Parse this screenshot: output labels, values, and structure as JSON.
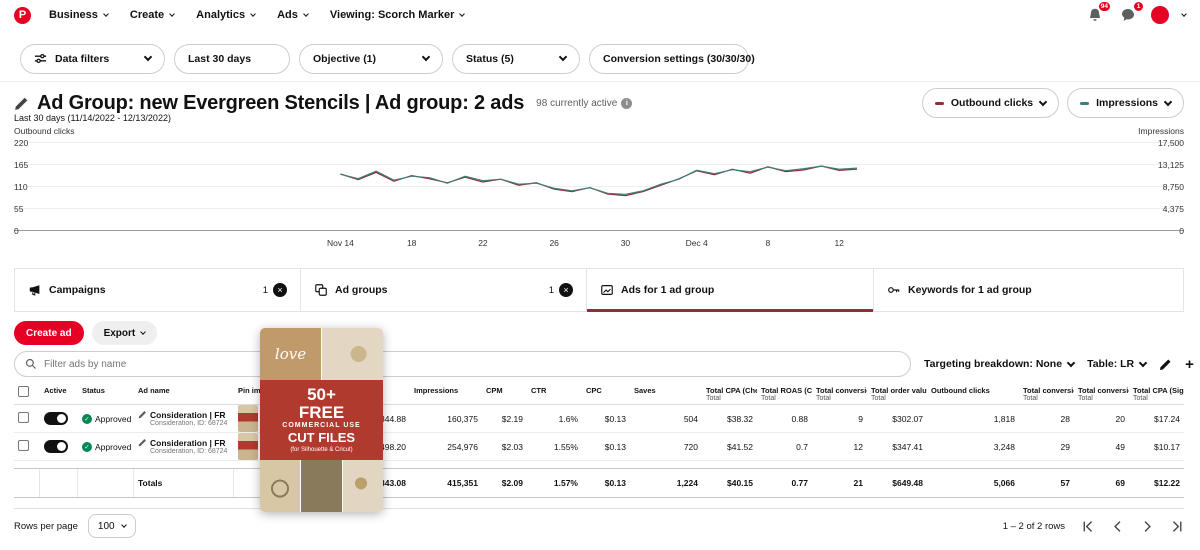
{
  "colors": {
    "pinterest_red": "#e60023",
    "outbound_series": "#8c2f39",
    "impressions_series": "#3f7e78",
    "approved_green": "#008753",
    "active_tab_underline": "#8c2f39"
  },
  "icons": {
    "logo": "P",
    "close": "×",
    "check": "✓",
    "plus": "+",
    "info": "i"
  },
  "nav": {
    "items": [
      {
        "label": "Business"
      },
      {
        "label": "Create"
      },
      {
        "label": "Analytics"
      },
      {
        "label": "Ads"
      },
      {
        "label": "Viewing: Scorch Marker"
      }
    ],
    "notifications_badge": "94",
    "messages_badge": "1"
  },
  "filters": {
    "items": [
      {
        "label": "Data filters"
      },
      {
        "label": "Last 30 days"
      },
      {
        "label": "Objective (1)"
      },
      {
        "label": "Status (5)"
      },
      {
        "label": "Conversion settings (30/30/30)"
      }
    ]
  },
  "header": {
    "title": "Ad Group: new Evergreen Stencils | Ad group: 2 ads",
    "active_note": "98 currently active",
    "date_caption": "Last 30 days (11/14/2022 - 12/13/2022)",
    "metric_selectors": [
      {
        "label": "Outbound clicks"
      },
      {
        "label": "Impressions"
      }
    ]
  },
  "chart_data": {
    "type": "line",
    "x_tick_labels": [
      "Nov 14",
      "18",
      "22",
      "26",
      "30",
      "Dec 4",
      "8",
      "12"
    ],
    "x_tick_indices": [
      0,
      4,
      8,
      12,
      16,
      20,
      24,
      28
    ],
    "left_axis": {
      "label": "Outbound clicks",
      "ticks": [
        "220",
        "165",
        "110",
        "55",
        "0"
      ],
      "max": 220
    },
    "right_axis": {
      "label": "Impressions",
      "ticks": [
        "17,500",
        "13,125",
        "8,750",
        "4,375",
        "0"
      ],
      "max": 17500
    },
    "series": [
      {
        "name": "Outbound clicks",
        "axis": "left",
        "color": "#8c2f39",
        "values": [
          140,
          126,
          144,
          122,
          136,
          128,
          118,
          132,
          120,
          127,
          112,
          118,
          102,
          96,
          106,
          90,
          86,
          96,
          112,
          128,
          148,
          138,
          152,
          142,
          158,
          146,
          150,
          160,
          149,
          152
        ]
      },
      {
        "name": "Impressions",
        "axis": "right",
        "color": "#3f7e78",
        "values": [
          11100,
          10200,
          11700,
          9900,
          10700,
          10400,
          9300,
          10700,
          9800,
          10100,
          9100,
          9300,
          8300,
          7800,
          8400,
          7300,
          7100,
          7800,
          9100,
          10100,
          11900,
          11200,
          12000,
          11600,
          12500,
          11800,
          12200,
          12700,
          12100,
          12300
        ]
      }
    ]
  },
  "tabs": [
    {
      "label": "Campaigns",
      "count": "1"
    },
    {
      "label": "Ad groups",
      "count": "1"
    },
    {
      "label": "Ads for 1 ad group",
      "active": true
    },
    {
      "label": "Keywords for 1 ad group"
    }
  ],
  "toolbar": {
    "create_ad": "Create ad",
    "export": "Export",
    "search_placeholder": "Filter ads by name",
    "targeting_breakdown": "Targeting breakdown: None",
    "table_view": "Table: LR"
  },
  "table": {
    "columns": [
      {
        "label": ""
      },
      {
        "label": "Active"
      },
      {
        "label": "Status"
      },
      {
        "label": "Ad name"
      },
      {
        "label": "Pin ima"
      },
      {
        "label": ""
      },
      {
        "label": "Impressions"
      },
      {
        "label": "CPM"
      },
      {
        "label": "CTR"
      },
      {
        "label": "CPC"
      },
      {
        "label": "Saves"
      },
      {
        "label": "Total CPA (Che",
        "sub": "Total"
      },
      {
        "label": "Total ROAS (Ch",
        "sub": "Total"
      },
      {
        "label": "Total conversio",
        "sub": "Total"
      },
      {
        "label": "Total order value (",
        "sub": "Total"
      },
      {
        "label": "Outbound clicks"
      },
      {
        "label": "Total conversio",
        "sub": "Total"
      },
      {
        "label": "Total conversio",
        "sub": "Total"
      },
      {
        "label": "Total CPA (Sig",
        "sub": "Total"
      }
    ],
    "rows": [
      {
        "active": true,
        "status": "Approved",
        "name": "Consideration | FR",
        "meta": "Consideration, ID: 68724",
        "values": [
          "$344.88",
          "160,375",
          "$2.19",
          "1.6%",
          "$0.13",
          "504",
          "$38.32",
          "0.88",
          "9",
          "$302.07",
          "1,818",
          "28",
          "20",
          "$17.24"
        ]
      },
      {
        "active": true,
        "status": "Approved",
        "name": "Consideration | FR",
        "meta": "Consideration, ID: 68724",
        "values": [
          "$498.20",
          "254,976",
          "$2.03",
          "1.55%",
          "$0.13",
          "720",
          "$41.52",
          "0.7",
          "12",
          "$347.41",
          "3,248",
          "29",
          "49",
          "$10.17"
        ]
      }
    ],
    "totals": {
      "label": "Totals",
      "values": [
        "$843.08",
        "415,351",
        "$2.09",
        "1.57%",
        "$0.13",
        "1,224",
        "$40.15",
        "0.77",
        "21",
        "$649.48",
        "5,066",
        "57",
        "69",
        "$12.22"
      ]
    }
  },
  "pin_preview": {
    "script_text": "love",
    "lines": [
      "50+",
      "FREE",
      "COMMERCIAL USE",
      "CUT FILES",
      "(for Silhouette & Cricut)"
    ]
  },
  "footer": {
    "rows_per_page_label": "Rows per page",
    "rows_per_page_value": "100",
    "range_text": "1 – 2 of 2 rows"
  }
}
